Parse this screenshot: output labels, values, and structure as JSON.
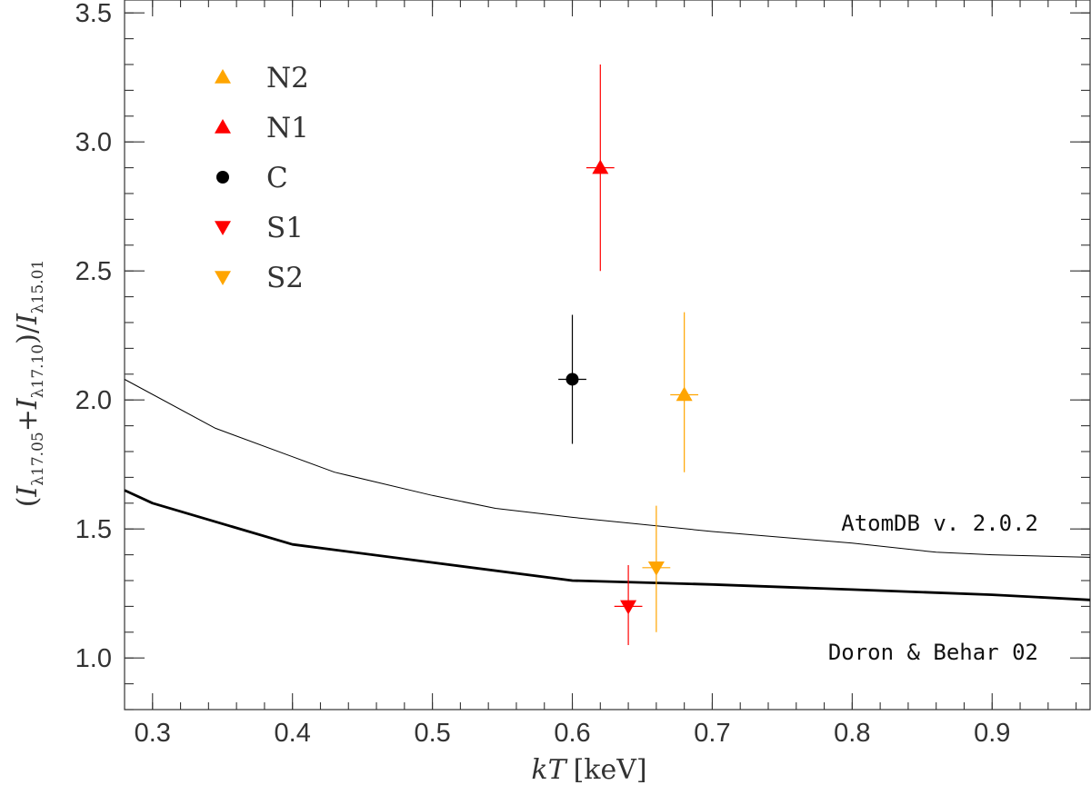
{
  "chart_data": {
    "type": "scatter",
    "xlabel": {
      "var": "kT",
      "unit": "[keV]"
    },
    "ylabel": {
      "open": "(",
      "i1": "I",
      "s1": "λ17.05",
      "plus": "+",
      "i2": "I",
      "s2": "λ17.10",
      "close": ")/",
      "i3": "I",
      "s3": "λ15.01"
    },
    "xlim": [
      0.28,
      0.97
    ],
    "ylim": [
      0.8,
      3.55
    ],
    "x_ticks": [
      0.3,
      0.4,
      0.5,
      0.6,
      0.7,
      0.8,
      0.9
    ],
    "x_tick_labels": [
      "0.3",
      "0.4",
      "0.5",
      "0.6",
      "0.7",
      "0.8",
      "0.9"
    ],
    "y_ticks": [
      1.0,
      1.5,
      2.0,
      2.5,
      3.0,
      3.5
    ],
    "y_tick_labels": [
      "1.0",
      "1.5",
      "2.0",
      "2.5",
      "3.0",
      "3.5"
    ],
    "x_minor_step": 0.02,
    "y_minor_step": 0.1,
    "series": [
      {
        "name": "N2",
        "marker": "triangle-up",
        "color": "#ffa500",
        "x": 0.68,
        "y": 2.02,
        "xerr": 0.01,
        "yerr_low": 1.72,
        "yerr_high": 2.34
      },
      {
        "name": "N1",
        "marker": "triangle-up",
        "color": "#ff0000",
        "x": 0.62,
        "y": 2.9,
        "xerr": 0.01,
        "yerr_low": 2.5,
        "yerr_high": 3.3
      },
      {
        "name": "C",
        "marker": "circle",
        "color": "#000000",
        "x": 0.6,
        "y": 2.08,
        "xerr": 0.01,
        "yerr_low": 1.83,
        "yerr_high": 2.33
      },
      {
        "name": "S1",
        "marker": "triangle-down",
        "color": "#ff0000",
        "x": 0.64,
        "y": 1.2,
        "xerr": 0.01,
        "yerr_low": 1.05,
        "yerr_high": 1.36
      },
      {
        "name": "S2",
        "marker": "triangle-down",
        "color": "#ffa500",
        "x": 0.66,
        "y": 1.35,
        "xerr": 0.01,
        "yerr_low": 1.1,
        "yerr_high": 1.59
      }
    ],
    "curves": [
      {
        "name": "AtomDB v. 2.0.2",
        "weight": "thin",
        "x": [
          0.28,
          0.345,
          0.4,
          0.43,
          0.5,
          0.545,
          0.6,
          0.7,
          0.8,
          0.86,
          0.9,
          0.97
        ],
        "y": [
          2.08,
          1.89,
          1.78,
          1.72,
          1.63,
          1.58,
          1.545,
          1.49,
          1.445,
          1.41,
          1.4,
          1.39
        ]
      },
      {
        "name": "Doron & Behar 02",
        "weight": "thick",
        "x": [
          0.28,
          0.3,
          0.4,
          0.5,
          0.6,
          0.7,
          0.8,
          0.9,
          0.97
        ],
        "y": [
          1.65,
          1.6,
          1.44,
          1.37,
          1.3,
          1.285,
          1.265,
          1.245,
          1.225
        ]
      }
    ]
  }
}
